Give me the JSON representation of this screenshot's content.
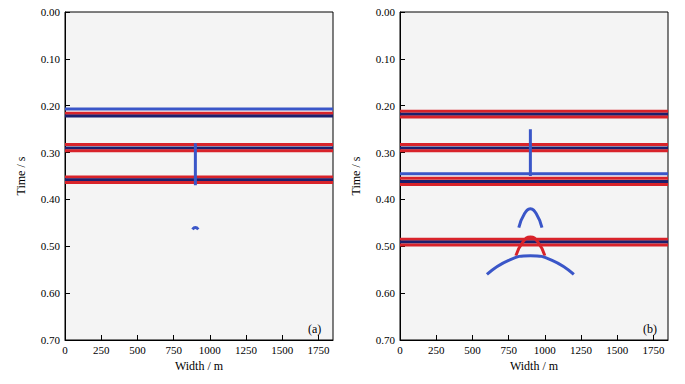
{
  "chart_data": [
    {
      "type": "line",
      "title": "(a)",
      "xlabel": "Width / m",
      "ylabel": "Time / s",
      "xlim": [
        0,
        1850
      ],
      "xticks": [
        0,
        250,
        500,
        750,
        1000,
        1250,
        1500,
        1750
      ],
      "ylim": [
        0,
        0.7
      ],
      "yticks": [
        {
          "value": 0,
          "label": "0.00"
        },
        {
          "value": 0.1,
          "label": "0.10"
        },
        {
          "value": 0.2,
          "label": "0.20"
        },
        {
          "value": 0.3,
          "label": "0.30"
        },
        {
          "value": 0.4,
          "label": "0.40"
        },
        {
          "value": 0.5,
          "label": "0.50"
        },
        {
          "value": 0.6,
          "label": "0.60"
        },
        {
          "value": 0.7,
          "label": "0.70"
        }
      ],
      "series": [
        {
          "color": "#3a56c8",
          "x": [
            0,
            1850
          ],
          "values": [
            0.207,
            0.207
          ]
        },
        {
          "color": "#d8232a",
          "x": [
            0,
            1850
          ],
          "values": [
            0.216,
            0.216
          ]
        },
        {
          "color": "#1b1f6e",
          "x": [
            0,
            1850
          ],
          "values": [
            0.222,
            0.222
          ]
        },
        {
          "color": "#d8232a",
          "x": [
            0,
            1850
          ],
          "values": [
            0.283,
            0.283
          ]
        },
        {
          "color": "#1b1f6e",
          "x": [
            0,
            1850
          ],
          "values": [
            0.29,
            0.29
          ]
        },
        {
          "color": "#d8232a",
          "x": [
            0,
            1850
          ],
          "values": [
            0.296,
            0.296
          ]
        },
        {
          "color": "#d8232a",
          "x": [
            0,
            1850
          ],
          "values": [
            0.352,
            0.352
          ]
        },
        {
          "color": "#1b1f6e",
          "x": [
            0,
            1850
          ],
          "values": [
            0.358,
            0.358
          ]
        },
        {
          "color": "#d8232a",
          "x": [
            0,
            1850
          ],
          "values": [
            0.364,
            0.364
          ]
        },
        {
          "color": "#3a56c8",
          "x": [
            880,
            900,
            920
          ],
          "values": [
            0.464,
            0.46,
            0.464
          ]
        },
        {
          "color": "#3a56c8",
          "x": [
            900,
            900
          ],
          "values": [
            0.28,
            0.37
          ]
        }
      ]
    },
    {
      "type": "line",
      "title": "(b)",
      "xlabel": "Width / m",
      "ylabel": "Time / s",
      "xlim": [
        0,
        1850
      ],
      "xticks": [
        0,
        250,
        500,
        750,
        1000,
        1250,
        1500,
        1750
      ],
      "ylim": [
        0,
        0.7
      ],
      "yticks": [
        {
          "value": 0,
          "label": "0.00"
        },
        {
          "value": 0.1,
          "label": "0.10"
        },
        {
          "value": 0.2,
          "label": "0.20"
        },
        {
          "value": 0.3,
          "label": "0.30"
        },
        {
          "value": 0.4,
          "label": "0.40"
        },
        {
          "value": 0.5,
          "label": "0.50"
        },
        {
          "value": 0.6,
          "label": "0.60"
        },
        {
          "value": 0.7,
          "label": "0.70"
        }
      ],
      "series": [
        {
          "color": "#d8232a",
          "x": [
            0,
            1850
          ],
          "values": [
            0.212,
            0.212
          ]
        },
        {
          "color": "#1b1f6e",
          "x": [
            0,
            1850
          ],
          "values": [
            0.218,
            0.218
          ]
        },
        {
          "color": "#d8232a",
          "x": [
            0,
            1850
          ],
          "values": [
            0.224,
            0.224
          ]
        },
        {
          "color": "#d8232a",
          "x": [
            0,
            1850
          ],
          "values": [
            0.283,
            0.283
          ]
        },
        {
          "color": "#1b1f6e",
          "x": [
            0,
            1850
          ],
          "values": [
            0.29,
            0.29
          ]
        },
        {
          "color": "#d8232a",
          "x": [
            0,
            1850
          ],
          "values": [
            0.296,
            0.296
          ]
        },
        {
          "color": "#3a56c8",
          "x": [
            0,
            1850
          ],
          "values": [
            0.345,
            0.345
          ]
        },
        {
          "color": "#d8232a",
          "x": [
            0,
            1850
          ],
          "values": [
            0.355,
            0.355
          ]
        },
        {
          "color": "#1b1f6e",
          "x": [
            0,
            1850
          ],
          "values": [
            0.362,
            0.362
          ]
        },
        {
          "color": "#d8232a",
          "x": [
            0,
            1850
          ],
          "values": [
            0.368,
            0.368
          ]
        },
        {
          "color": "#d8232a",
          "x": [
            0,
            1850
          ],
          "values": [
            0.485,
            0.485
          ]
        },
        {
          "color": "#1b1f6e",
          "x": [
            0,
            1850
          ],
          "values": [
            0.491,
            0.491
          ]
        },
        {
          "color": "#d8232a",
          "x": [
            0,
            1850
          ],
          "values": [
            0.497,
            0.497
          ]
        },
        {
          "color": "#3a56c8",
          "x": [
            900,
            900
          ],
          "values": [
            0.25,
            0.35
          ]
        },
        {
          "color": "#3a56c8",
          "x": [
            820,
            860,
            900,
            940,
            980
          ],
          "values": [
            0.46,
            0.43,
            0.42,
            0.43,
            0.46
          ]
        },
        {
          "color": "#d8232a",
          "x": [
            800,
            850,
            900,
            950,
            1000
          ],
          "values": [
            0.52,
            0.49,
            0.48,
            0.49,
            0.52
          ]
        },
        {
          "color": "#3a56c8",
          "x": [
            600,
            750,
            900,
            1050,
            1200
          ],
          "values": [
            0.56,
            0.53,
            0.52,
            0.53,
            0.56
          ]
        }
      ]
    }
  ]
}
